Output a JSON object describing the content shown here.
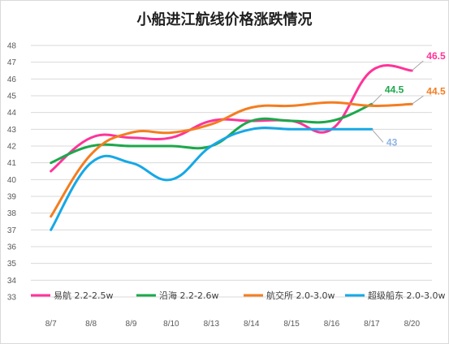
{
  "chart_data": {
    "type": "line",
    "title": "小船进江航线价格涨跌情况",
    "xlabel": "",
    "ylabel": "",
    "categories": [
      "8/7",
      "8/8",
      "8/9",
      "8/10",
      "8/13",
      "8/14",
      "8/15",
      "8/16",
      "8/17",
      "8/20"
    ],
    "ylim": [
      33,
      48
    ],
    "yticks": [
      33,
      34,
      35,
      36,
      37,
      38,
      39,
      40,
      41,
      42,
      43,
      44,
      45,
      46,
      47,
      48
    ],
    "grid": "horizontal",
    "legend_position": "bottom",
    "series": [
      {
        "name": "易航 2.2-2.5w",
        "color": "#ff3399",
        "values": [
          40.5,
          42.5,
          42.5,
          42.5,
          43.5,
          43.5,
          43.5,
          43.0,
          46.5,
          46.5
        ],
        "end_label": "46.5"
      },
      {
        "name": "沿海 2.2-2.6w",
        "color": "#1ca84b",
        "values": [
          41.0,
          42.0,
          42.0,
          42.0,
          42.0,
          43.5,
          43.5,
          43.5,
          44.5,
          null
        ],
        "end_label": "44.5"
      },
      {
        "name": "航交所 2.0-3.0w",
        "color": "#f47d20",
        "values": [
          37.8,
          41.5,
          42.8,
          42.8,
          43.3,
          44.3,
          44.4,
          44.6,
          44.4,
          44.5
        ],
        "end_label": "44.5"
      },
      {
        "name": "超级船东 2.0-3.0w",
        "color": "#16a8e6",
        "values": [
          37.0,
          41.0,
          41.0,
          40.0,
          42.0,
          43.0,
          43.0,
          43.0,
          43.0,
          null
        ],
        "end_label": "43",
        "end_label_color": "#8eb4e3"
      }
    ]
  }
}
